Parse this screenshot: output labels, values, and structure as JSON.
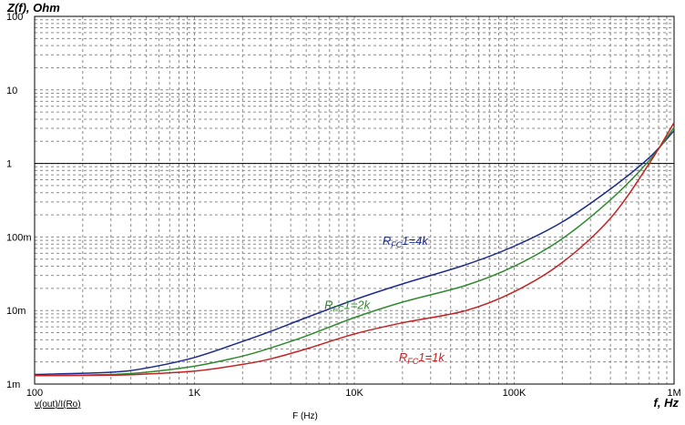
{
  "chart_data": {
    "type": "line",
    "title": "",
    "ylabel": "Z(f), Ohm",
    "xlabel": "f, Hz",
    "footer_left": "v(out)/I(Ro)",
    "footer_center": "F (Hz)",
    "x_scale": "log",
    "y_scale": "log",
    "xlim": [
      100,
      1000000
    ],
    "ylim": [
      0.001,
      100
    ],
    "grid": true,
    "x_ticks": [
      {
        "value": 100,
        "label": "100"
      },
      {
        "value": 1000,
        "label": "1K"
      },
      {
        "value": 10000,
        "label": "10K"
      },
      {
        "value": 100000,
        "label": "100K"
      },
      {
        "value": 1000000,
        "label": "1M"
      }
    ],
    "y_ticks": [
      {
        "value": 0.001,
        "label": "1m"
      },
      {
        "value": 0.01,
        "label": "10m"
      },
      {
        "value": 0.1,
        "label": "100m"
      },
      {
        "value": 1,
        "label": "1"
      },
      {
        "value": 10,
        "label": "10"
      },
      {
        "value": 100,
        "label": "100"
      }
    ],
    "reference_line": {
      "y": 1,
      "color": "#000000"
    },
    "series": [
      {
        "name": "RFC1=4k",
        "label_main": "R",
        "label_sub": "FC",
        "label_rest": "1=4k",
        "color": "#1c2a8c",
        "x": [
          100,
          300,
          500,
          1000,
          2000,
          3000,
          5000,
          10000,
          20000,
          50000,
          100000,
          200000,
          400000,
          700000,
          1000000
        ],
        "y": [
          0.00135,
          0.00145,
          0.00165,
          0.0023,
          0.0038,
          0.0052,
          0.008,
          0.014,
          0.023,
          0.042,
          0.075,
          0.16,
          0.45,
          1.2,
          2.8
        ]
      },
      {
        "name": "RFC1=2k",
        "label_main": "R",
        "label_sub": "FC",
        "label_rest": "1=2k",
        "color": "#2f8a2f",
        "x": [
          100,
          300,
          500,
          1000,
          2000,
          3000,
          5000,
          10000,
          20000,
          50000,
          100000,
          200000,
          400000,
          700000,
          1000000
        ],
        "y": [
          0.0013,
          0.00135,
          0.00145,
          0.00175,
          0.0024,
          0.0031,
          0.0045,
          0.008,
          0.013,
          0.022,
          0.04,
          0.095,
          0.32,
          1.1,
          3.1
        ]
      },
      {
        "name": "RFC1=1k",
        "label_main": "R",
        "label_sub": "FC",
        "label_rest": "1=1k",
        "color": "#c42323",
        "x": [
          100,
          300,
          500,
          1000,
          2000,
          3000,
          5000,
          10000,
          20000,
          50000,
          100000,
          200000,
          400000,
          700000,
          1000000
        ],
        "y": [
          0.0013,
          0.00132,
          0.00137,
          0.0015,
          0.00185,
          0.0022,
          0.003,
          0.0048,
          0.0068,
          0.01,
          0.018,
          0.045,
          0.18,
          1.0,
          3.6
        ]
      }
    ]
  }
}
